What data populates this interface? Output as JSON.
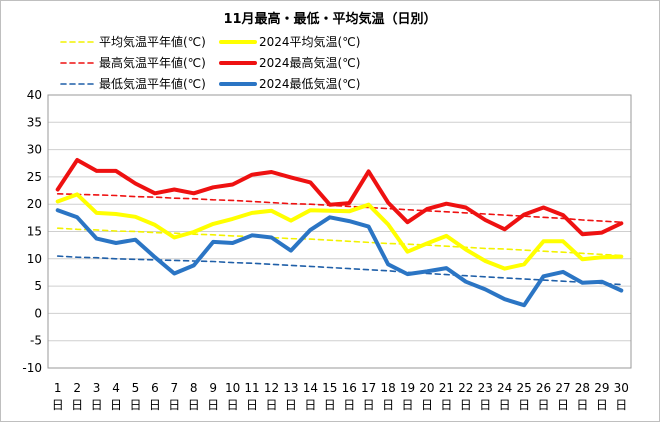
{
  "chart_data": {
    "type": "line",
    "title": "11月最高・最低・平均気温（日別）",
    "xlabel": "",
    "ylabel": "",
    "day_suffix": "日",
    "x": [
      1,
      2,
      3,
      4,
      5,
      6,
      7,
      8,
      9,
      10,
      11,
      12,
      13,
      14,
      15,
      16,
      17,
      18,
      19,
      20,
      21,
      22,
      23,
      24,
      25,
      26,
      27,
      28,
      29,
      30
    ],
    "ylim": [
      -10,
      40
    ],
    "yticks": [
      -10,
      -5,
      0,
      5,
      10,
      15,
      20,
      25,
      30,
      35,
      40
    ],
    "grid": "horizontal",
    "legend_position": "top-left",
    "series": [
      {
        "name": "平均気温平年値(℃)",
        "color": "#f2f200",
        "style": "dashed",
        "values": [
          15.6,
          15.4,
          15.3,
          15.1,
          15.0,
          14.8,
          14.7,
          14.5,
          14.4,
          14.2,
          14.1,
          13.9,
          13.7,
          13.6,
          13.4,
          13.2,
          13.0,
          12.8,
          12.7,
          12.5,
          12.3,
          12.1,
          11.9,
          11.8,
          11.6,
          11.4,
          11.2,
          11.0,
          10.8,
          10.6
        ]
      },
      {
        "name": "2024平均気温(℃)",
        "color": "#ffff00",
        "style": "solid",
        "values": [
          20.5,
          21.8,
          18.4,
          18.2,
          17.7,
          16.2,
          13.9,
          14.9,
          16.4,
          17.3,
          18.4,
          18.8,
          17.0,
          18.9,
          18.8,
          18.7,
          19.9,
          16.3,
          11.3,
          12.8,
          14.2,
          11.7,
          9.6,
          8.2,
          9.0,
          13.2,
          13.2,
          9.9,
          10.3,
          10.4
        ]
      },
      {
        "name": "最高気温平年値(℃)",
        "color": "#ee1111",
        "style": "dashed",
        "values": [
          21.9,
          21.8,
          21.7,
          21.6,
          21.4,
          21.3,
          21.1,
          21.0,
          20.8,
          20.7,
          20.5,
          20.3,
          20.1,
          20.0,
          19.8,
          19.6,
          19.4,
          19.2,
          19.0,
          18.8,
          18.6,
          18.4,
          18.2,
          18.0,
          17.8,
          17.6,
          17.4,
          17.1,
          16.9,
          16.7
        ]
      },
      {
        "name": "2024最高気温(℃)",
        "color": "#ee1111",
        "style": "solid",
        "values": [
          22.7,
          28.1,
          26.1,
          26.1,
          23.8,
          22.0,
          22.7,
          22.0,
          23.1,
          23.6,
          25.4,
          25.9,
          24.9,
          24.0,
          19.9,
          20.2,
          26.0,
          20.3,
          16.7,
          19.1,
          20.1,
          19.4,
          17.1,
          15.4,
          18.1,
          19.4,
          18.0,
          14.5,
          14.8,
          16.5
        ]
      },
      {
        "name": "最低気温平年値(℃)",
        "color": "#1f5fa8",
        "style": "dashed",
        "values": [
          10.5,
          10.3,
          10.2,
          10.0,
          9.9,
          9.8,
          9.7,
          9.6,
          9.5,
          9.3,
          9.2,
          9.0,
          8.8,
          8.6,
          8.4,
          8.2,
          8.0,
          7.8,
          7.5,
          7.3,
          7.1,
          6.9,
          6.7,
          6.5,
          6.3,
          6.1,
          5.9,
          5.7,
          5.5,
          5.3
        ]
      },
      {
        "name": "2024最低気温(℃)",
        "color": "#2b75c4",
        "style": "solid",
        "values": [
          18.9,
          17.6,
          13.7,
          12.9,
          13.5,
          10.3,
          7.3,
          8.8,
          13.1,
          12.9,
          14.3,
          13.9,
          11.5,
          15.3,
          17.6,
          16.9,
          15.9,
          9.0,
          7.2,
          7.7,
          8.3,
          5.8,
          4.4,
          2.6,
          1.5,
          6.8,
          7.6,
          5.6,
          5.8,
          4.2
        ]
      }
    ]
  }
}
